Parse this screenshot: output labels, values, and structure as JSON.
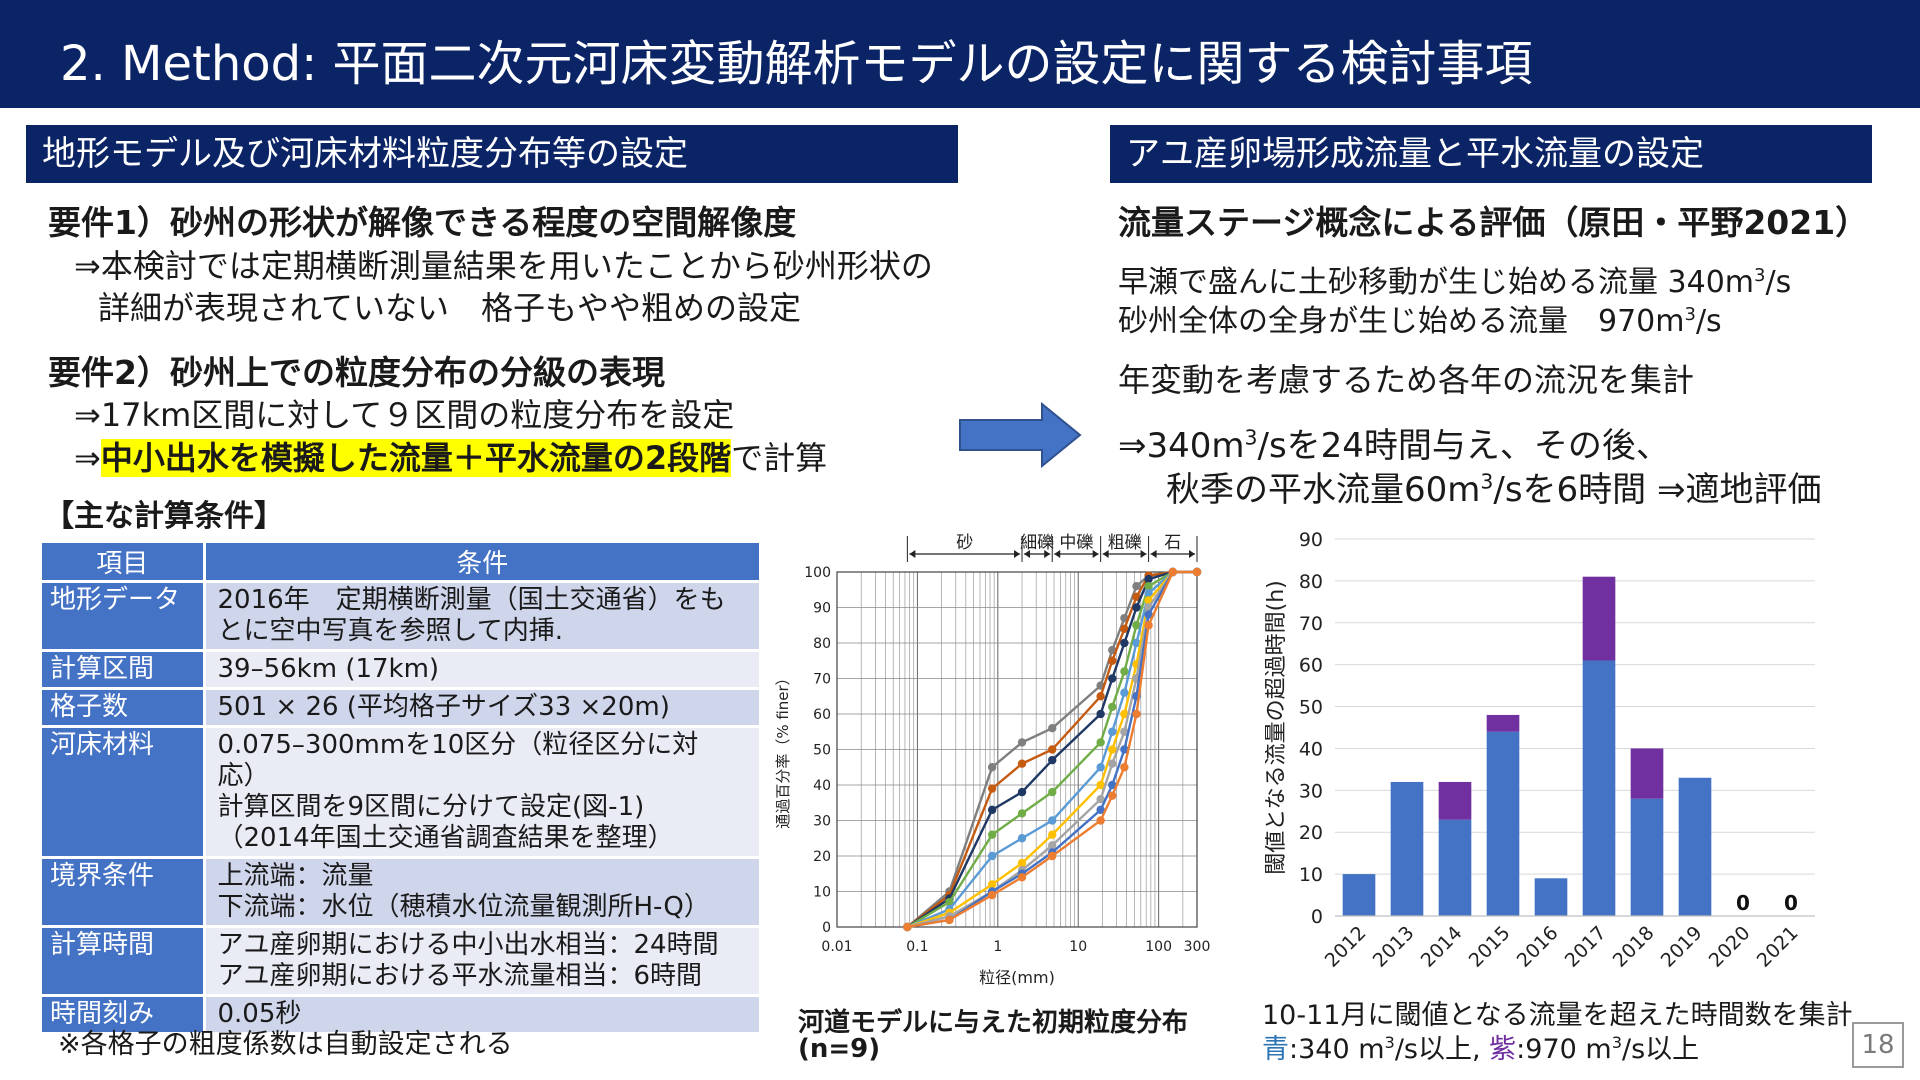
{
  "title": "2. Method: 平面二次元河床変動解析モデルの設定に関する検討事項",
  "left": {
    "header": "地形モデル及び河床材料粒度分布等の設定",
    "req1_title": "要件1）砂州の形状が解像できる程度の空間解像度",
    "req1_line1": "⇒本検討では定期横断測量結果を用いたことから砂州形状の",
    "req1_line2": "詳細が表現されていない　格子もやや粗めの設定",
    "req2_title": "要件2）砂州上での粒度分布の分級の表現",
    "req2_line1": "⇒17km区間に対して９区間の粒度分布を設定",
    "req2_line2_prefix": "⇒",
    "req2_line2_highlight": "中小出水を模擬した流量＋平水流量の2段階",
    "req2_line2_suffix": "で計算",
    "conditions_heading": "【主な計算条件】",
    "table": {
      "head_item": "項目",
      "head_cond": "条件",
      "rows": [
        {
          "item": "地形データ",
          "lines": [
            "2016年　定期横断測量（国土交通省）をも",
            "とに空中写真を参照して内挿."
          ]
        },
        {
          "item": "計算区間",
          "lines": [
            "39–56km (17km)"
          ]
        },
        {
          "item": "格子数",
          "lines": [
            "501 × 26 (平均格子サイズ33 ×20m)"
          ]
        },
        {
          "item": "河床材料",
          "lines": [
            "0.075–300mmを10区分（粒径区分に対",
            "応）",
            "計算区間を9区間に分けて設定(図-1)",
            "（2014年国土交通省調査結果を整理）"
          ]
        },
        {
          "item": "境界条件",
          "lines": [
            "上流端：流量",
            "下流端：水位（穂積水位流量観測所H-Q）"
          ]
        },
        {
          "item": "計算時間",
          "lines": [
            "アユ産卵期における中小出水相当：24時間",
            "アユ産卵期における平水流量相当：6時間"
          ]
        },
        {
          "item": "時間刻み",
          "lines": [
            "0.05秒"
          ]
        }
      ]
    },
    "footnote": "※各格子の粗度係数は自動設定される"
  },
  "right": {
    "header": "アユ産卵場形成流量と平水流量の設定",
    "eval_title": "流量ステージ概念による評価（原田・平野2021）",
    "flow1_text": "早瀬で盛んに土砂移動が生じ始める流量 340m",
    "flow1_unit_tail": "/s",
    "flow2_text": "砂州全体の全身が生じ始める流量　970m",
    "flow2_unit_tail": "/s",
    "sup3": "3",
    "annual_text": "年変動を考慮するため各年の流況を集計",
    "proc1_a": "⇒340m",
    "proc1_b": "/sを24時間与え、その後、",
    "proc2_a": "秋季の平水流量60m",
    "proc2_b": "/sを6時間 ⇒適地評価",
    "bar_caption1": "10-11月に閾値となる流量を超えた時間数を集計",
    "bar_caption2_blue": "青",
    "bar_caption2_mid": ":340 m",
    "bar_caption2_tail": "/s以上, ",
    "bar_caption2_purple": "紫",
    "bar_caption2_mid2": ":970 m",
    "bar_caption2_tail2": "/s以上"
  },
  "grain_caption_line1": "河道モデルに与えた初期粒度分布",
  "grain_caption_line2": "(n=9)",
  "page_number": "18",
  "colors": {
    "navy": "#0b2466",
    "table_blue": "#4472c4",
    "bar_blue": "#4472c4",
    "bar_purple": "#7030a0",
    "highlight": "#ffff00"
  },
  "chart_data": [
    {
      "type": "line",
      "xscale": "log",
      "xlabel": "粒径(mm)",
      "ylabel": "通過百分率（% finer）",
      "xlim": [
        0.01,
        300
      ],
      "ylim": [
        0,
        100
      ],
      "xticks": [
        "0.01",
        "0.1",
        "1",
        "10",
        "100",
        "300"
      ],
      "yticks": [
        "0",
        "10",
        "20",
        "30",
        "40",
        "50",
        "60",
        "70",
        "80",
        "90",
        "100"
      ],
      "size_classes": [
        "砂",
        "細礫",
        "中礫",
        "粗礫",
        "石"
      ],
      "x": [
        0.075,
        0.25,
        0.85,
        2,
        4.75,
        19,
        26.5,
        37.5,
        53,
        75,
        150,
        300
      ],
      "series": [
        {
          "color": "#7f7f7f",
          "values": [
            0,
            10,
            45,
            52,
            56,
            68,
            78,
            87,
            96,
            99,
            100,
            100
          ]
        },
        {
          "color": "#c55a11",
          "values": [
            0,
            9,
            39,
            46,
            50,
            65,
            75,
            84,
            93,
            99,
            100,
            100
          ]
        },
        {
          "color": "#203864",
          "values": [
            0,
            8,
            33,
            38,
            47,
            60,
            70,
            80,
            90,
            98,
            100,
            100
          ]
        },
        {
          "color": "#70ad47",
          "values": [
            0,
            7,
            26,
            32,
            38,
            52,
            62,
            72,
            85,
            96,
            100,
            100
          ]
        },
        {
          "color": "#5b9bd5",
          "values": [
            0,
            5,
            20,
            25,
            30,
            45,
            55,
            66,
            80,
            94,
            100,
            100
          ]
        },
        {
          "color": "#ffc000",
          "values": [
            0,
            4,
            12,
            18,
            26,
            40,
            50,
            60,
            74,
            92,
            100,
            100
          ]
        },
        {
          "color": "#a5a5a5",
          "values": [
            0,
            3,
            10,
            16,
            23,
            36,
            46,
            55,
            70,
            90,
            100,
            100
          ]
        },
        {
          "color": "#4472c4",
          "values": [
            0,
            2,
            10,
            15,
            21,
            33,
            40,
            50,
            65,
            88,
            100,
            100
          ]
        },
        {
          "color": "#ed7d31",
          "values": [
            0,
            2,
            9,
            14,
            20,
            30,
            37,
            45,
            60,
            85,
            100,
            100
          ]
        }
      ]
    },
    {
      "type": "bar",
      "stacked": true,
      "ylabel": "閾値となる流量の超過時間(h)",
      "ylim": [
        0,
        90
      ],
      "yticks": [
        "0",
        "10",
        "20",
        "30",
        "40",
        "50",
        "60",
        "70",
        "80",
        "90"
      ],
      "categories": [
        "2012",
        "2013",
        "2014",
        "2015",
        "2016",
        "2017",
        "2018",
        "2019",
        "2020",
        "2021"
      ],
      "series": [
        {
          "color": "#4472c4",
          "values": [
            10,
            32,
            23,
            44,
            9,
            61,
            28,
            33,
            0,
            0
          ]
        },
        {
          "color": "#7030a0",
          "values": [
            0,
            0,
            9,
            4,
            0,
            20,
            12,
            0,
            0,
            0
          ]
        }
      ],
      "zero_labels": [
        "0",
        "0"
      ]
    }
  ]
}
